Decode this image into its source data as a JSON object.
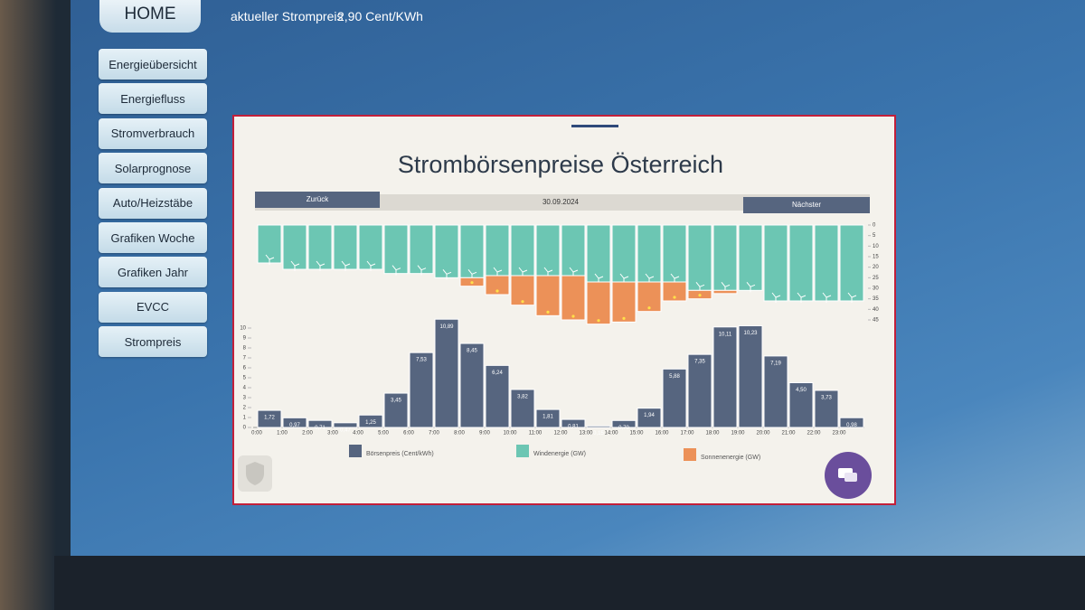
{
  "sidebar": {
    "home": "HOME",
    "items": [
      "Energieübersicht",
      "Energiefluss",
      "Stromverbrauch",
      "Solarprognose",
      "Auto/Heizstäbe",
      "Grafiken Woche",
      "Grafiken Jahr",
      "EVCC",
      "Strompreis"
    ]
  },
  "header": {
    "label": "aktueller Strompreis",
    "price": "2,90 Cent/KWh"
  },
  "navigation": {
    "back": "Zurück",
    "date": "30.09.2024",
    "next": "Nächster"
  },
  "chart_data": {
    "type": "bar",
    "title": "Strombörsenpreise Österreich",
    "categories": [
      "0:00",
      "1:00",
      "2:00",
      "3:00",
      "4:00",
      "5:00",
      "6:00",
      "7:00",
      "8:00",
      "9:00",
      "10:00",
      "11:00",
      "12:00",
      "13:00",
      "14:00",
      "15:00",
      "16:00",
      "17:00",
      "18:00",
      "19:00",
      "20:00",
      "21:00",
      "22:00",
      "23:00"
    ],
    "series": [
      {
        "name": "Börsenpreis (Cent/kWh)",
        "color": "#56657f",
        "values": [
          1.72,
          0.97,
          0.71,
          0.47,
          1.25,
          3.45,
          7.53,
          10.89,
          8.45,
          6.24,
          3.82,
          1.81,
          0.81,
          0.15,
          0.7,
          1.94,
          5.88,
          7.35,
          10.11,
          10.23,
          7.19,
          4.5,
          3.73,
          0.98
        ],
        "value_labels": [
          "1,72",
          "0,97",
          "0,71",
          "0,47",
          "1,25",
          "3,45",
          "7,53",
          "10,89",
          "8,45",
          "6,24",
          "3,82",
          "1,81",
          "0,81",
          "0,15",
          "0,70",
          "1,94",
          "5,88",
          "7,35",
          "10,11",
          "10,23",
          "7,19",
          "4,50",
          "3,73",
          "0,98"
        ]
      },
      {
        "name": "Windenergie (GW)",
        "color": "#6cc6b3",
        "axis": "y2",
        "values": [
          18,
          21,
          21,
          21,
          21,
          23,
          23,
          25,
          25,
          24,
          24,
          24,
          24,
          27,
          27,
          27,
          27,
          31,
          31,
          31,
          36,
          36,
          36,
          36
        ]
      },
      {
        "name": "Sonnenenergie (GW)",
        "color": "#ec9158",
        "axis": "y2",
        "values": [
          0,
          0,
          0,
          0,
          0,
          0,
          0,
          0,
          4,
          9,
          14,
          19,
          21,
          20,
          19,
          14,
          9,
          4,
          1.5,
          0,
          0,
          0,
          0,
          0
        ]
      }
    ],
    "ylim": [
      0,
      11
    ],
    "yticks": [
      0,
      1,
      2,
      3,
      4,
      5,
      6,
      7,
      8,
      9,
      10
    ],
    "y2lim": [
      0,
      45
    ],
    "y2ticks": [
      0,
      5,
      10,
      15,
      20,
      25,
      30,
      35,
      40,
      45
    ]
  }
}
